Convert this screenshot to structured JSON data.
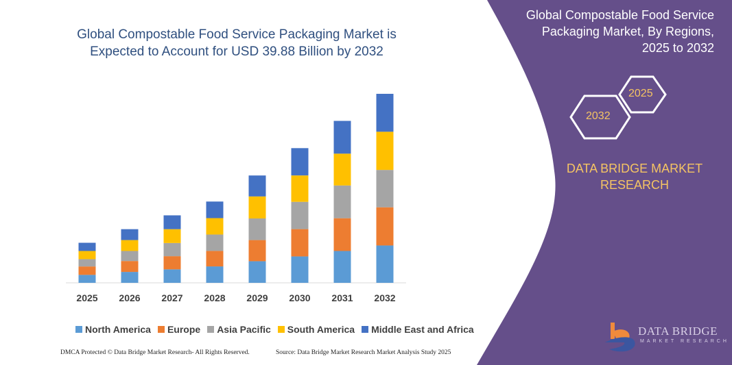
{
  "title": "Global Compostable Food Service Packaging Market is Expected to Account for USD 39.88 Billion by 2032",
  "side_panel": {
    "title": "Global Compostable Food Service Packaging Market, By Regions, 2025 to 2032",
    "hex_start": "2025",
    "hex_end": "2032",
    "brand": "DATA BRIDGE MARKET RESEARCH",
    "logo_text": "DATA BRIDGE",
    "logo_sub": "MARKET RESEARCH",
    "color": "#654f8a"
  },
  "footer": {
    "left": "DMCA Protected © Data Bridge Market Research- All Rights Reserved.",
    "right": "Source: Data Bridge Market Research Market Analysis Study 2025"
  },
  "chart_data": {
    "type": "bar",
    "stacked": true,
    "title": "Global Compostable Food Service Packaging Market is Expected to Account for USD 39.88 Billion by 2032",
    "categories": [
      "2025",
      "2026",
      "2027",
      "2028",
      "2029",
      "2030",
      "2031",
      "2032"
    ],
    "ylim": [
      0,
      39.88
    ],
    "grid": false,
    "legend": "bottom",
    "series": [
      {
        "name": "North America",
        "color": "#5b9bd5",
        "values": [
          1.68,
          2.3,
          2.84,
          3.46,
          4.56,
          5.57,
          6.72,
          7.88
        ]
      },
      {
        "name": "Europe",
        "color": "#ed7d31",
        "values": [
          1.77,
          2.3,
          2.78,
          3.27,
          4.46,
          5.76,
          6.91,
          8.06
        ]
      },
      {
        "name": "Asia Pacific",
        "color": "#a5a5a5",
        "values": [
          1.54,
          2.12,
          2.78,
          3.46,
          4.56,
          5.76,
          6.91,
          7.88
        ]
      },
      {
        "name": "South America",
        "color": "#ffc000",
        "values": [
          1.73,
          2.3,
          2.92,
          3.46,
          4.65,
          5.57,
          6.72,
          8.06
        ]
      },
      {
        "name": "Middle East and Africa",
        "color": "#4472c4",
        "values": [
          1.73,
          2.3,
          2.92,
          3.5,
          4.42,
          5.76,
          6.91,
          8.0
        ]
      }
    ]
  }
}
